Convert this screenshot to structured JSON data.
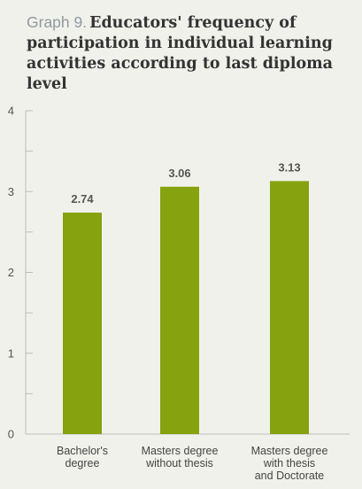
{
  "title": {
    "prefix": "Graph 9.",
    "text": "Educators' frequency of participation in individual learning activities according to last diploma level"
  },
  "colors": {
    "bar": "#86a20f",
    "axis": "#bdbdbd"
  },
  "chart_data": {
    "type": "bar",
    "title": "Graph 9. Educators' frequency of participation in individual learning activities according to last diploma level",
    "categories": [
      [
        "Bachelor's",
        "degree"
      ],
      [
        "Masters degree",
        "without thesis"
      ],
      [
        "Masters degree",
        "with thesis",
        "and Doctorate"
      ]
    ],
    "values": [
      2.74,
      3.06,
      3.13
    ],
    "value_labels": [
      "2.74",
      "3.06",
      "3.13"
    ],
    "y_ticks": [
      0,
      1,
      2,
      3,
      4
    ],
    "y_tick_labels": [
      "0",
      "1",
      "2",
      "3",
      "4"
    ],
    "ylim": [
      0,
      4
    ],
    "grid": false,
    "legend": "none"
  }
}
